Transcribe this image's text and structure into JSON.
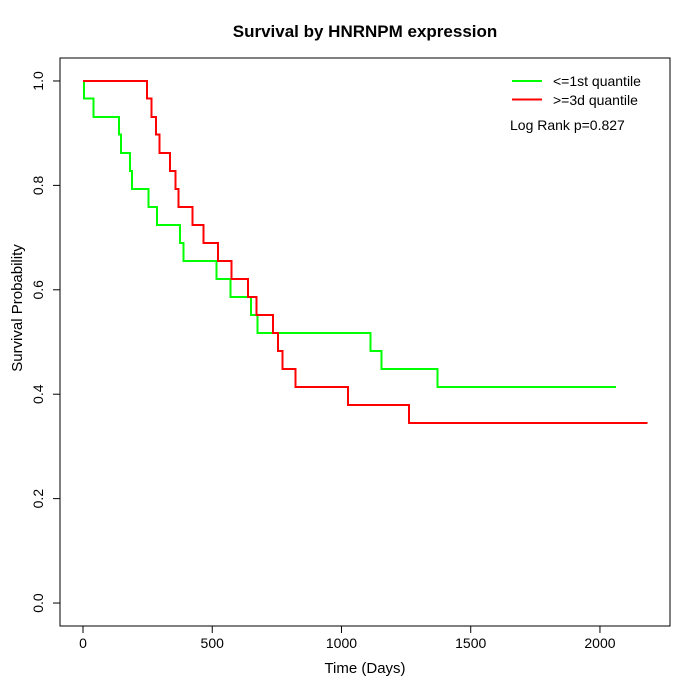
{
  "title": "Survival by HNRNPM expression",
  "chart_data": {
    "type": "line",
    "subtype": "kaplan-meier-step",
    "title": "Survival by HNRNPM expression",
    "xlabel": "Time (Days)",
    "ylabel": "Survival Probability",
    "x_ticks": [
      0,
      500,
      1000,
      1500,
      2000
    ],
    "y_ticks": [
      0.0,
      0.2,
      0.4,
      0.6,
      0.8,
      1.0
    ],
    "y_tick_labels": [
      "0.0",
      "0.2",
      "0.4",
      "0.6",
      "0.8",
      "1.0"
    ],
    "xlim": [
      -89,
      2271
    ],
    "ylim": [
      -0.044,
      1.044
    ],
    "grid": false,
    "legend_position": "top-right",
    "annotation": "Log Rank p=0.827",
    "axis_color": "#000000",
    "series": [
      {
        "name": "<=1st quantile",
        "color": "#00ff00",
        "points": [
          [
            0,
            1.0
          ],
          [
            3,
            0.966
          ],
          [
            40,
            0.931
          ],
          [
            139,
            0.897
          ],
          [
            147,
            0.862
          ],
          [
            182,
            0.828
          ],
          [
            190,
            0.793
          ],
          [
            253,
            0.759
          ],
          [
            287,
            0.724
          ],
          [
            375,
            0.69
          ],
          [
            388,
            0.655
          ],
          [
            517,
            0.621
          ],
          [
            571,
            0.586
          ],
          [
            650,
            0.552
          ],
          [
            676,
            0.517
          ],
          [
            1113,
            0.483
          ],
          [
            1155,
            0.448
          ],
          [
            1372,
            0.414
          ],
          [
            2062,
            0.414
          ]
        ]
      },
      {
        "name": ">=3d quantile",
        "color": "#ff0000",
        "points": [
          [
            0,
            1.0
          ],
          [
            248,
            0.966
          ],
          [
            265,
            0.931
          ],
          [
            282,
            0.897
          ],
          [
            295,
            0.862
          ],
          [
            337,
            0.828
          ],
          [
            358,
            0.793
          ],
          [
            369,
            0.759
          ],
          [
            424,
            0.724
          ],
          [
            466,
            0.69
          ],
          [
            523,
            0.655
          ],
          [
            575,
            0.621
          ],
          [
            639,
            0.586
          ],
          [
            672,
            0.552
          ],
          [
            736,
            0.517
          ],
          [
            755,
            0.483
          ],
          [
            772,
            0.448
          ],
          [
            822,
            0.414
          ],
          [
            1026,
            0.379
          ],
          [
            1261,
            0.345
          ],
          [
            2184,
            0.345
          ]
        ]
      }
    ]
  }
}
